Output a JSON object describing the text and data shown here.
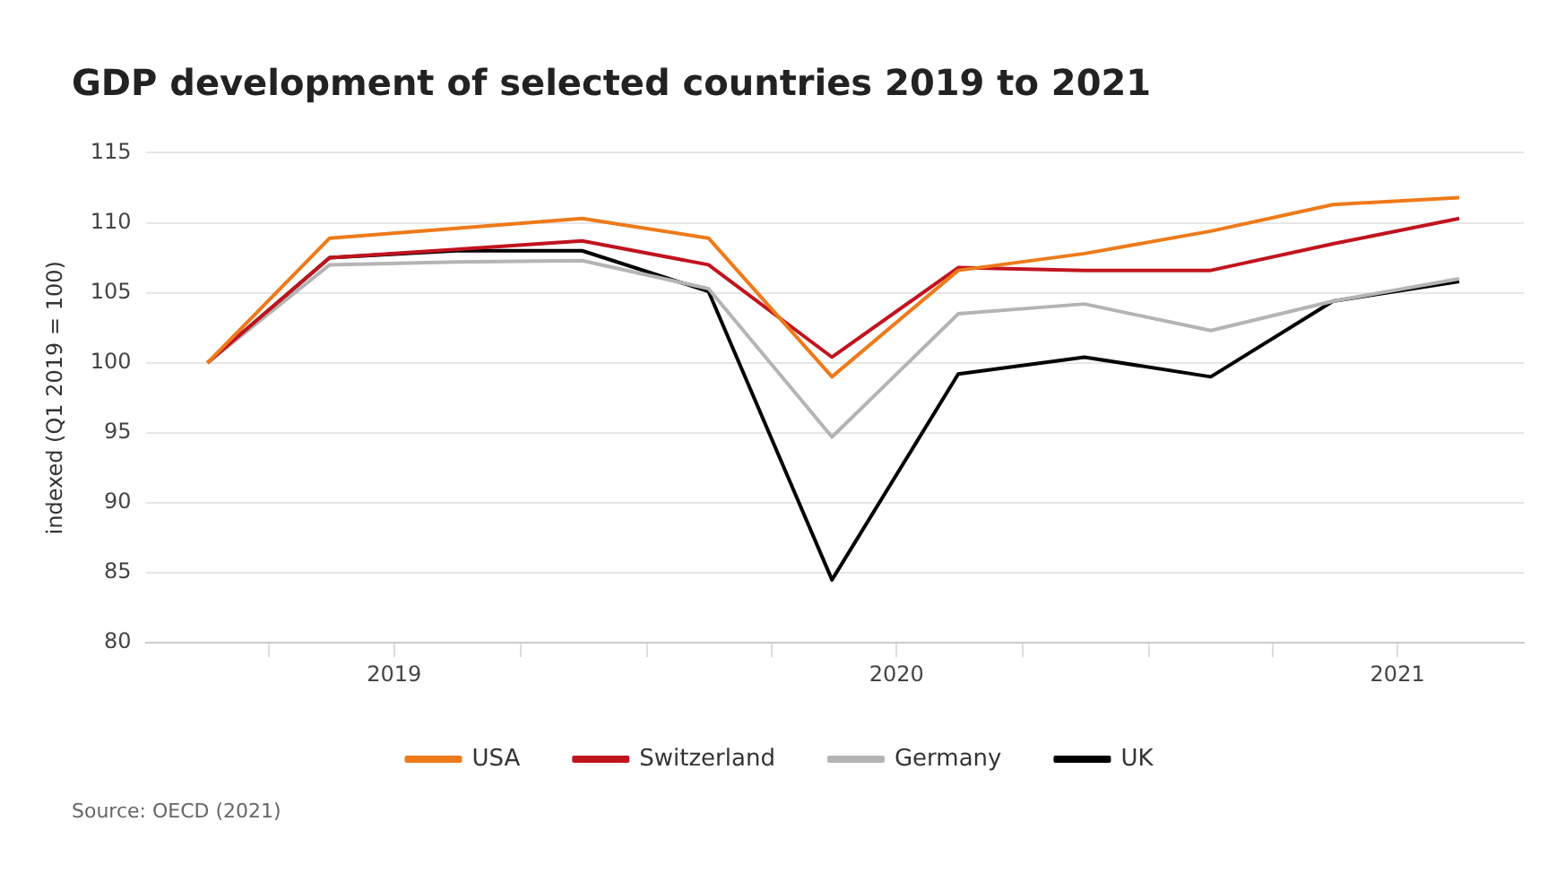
{
  "chart_data": {
    "type": "line",
    "title": "GDP development of selected countries 2019 to 2021",
    "ylabel": "indexed (Q1 2019 = 100)",
    "annotations": [
      "Source: OECD (2021)"
    ],
    "x": [
      "2019-02-15",
      "2019-05-15",
      "2019-08-15",
      "2019-11-15",
      "2020-02-15",
      "2020-05-15",
      "2020-08-15",
      "2020-11-15",
      "2021-02-15",
      "2021-05-15",
      "2021-08-15"
    ],
    "xlim": [
      "2019-01-01",
      "2021-10-01"
    ],
    "xticks": [
      {
        "value": "2019-04-01",
        "label": null
      },
      {
        "value": "2019-07-01",
        "label": "2019"
      },
      {
        "value": "2019-10-01",
        "label": null
      },
      {
        "value": "2020-01-01",
        "label": null
      },
      {
        "value": "2020-04-01",
        "label": null
      },
      {
        "value": "2020-07-01",
        "label": "2020"
      },
      {
        "value": "2020-10-01",
        "label": null
      },
      {
        "value": "2021-01-01",
        "label": null
      },
      {
        "value": "2021-04-01",
        "label": null
      },
      {
        "value": "2021-07-01",
        "label": "2021"
      }
    ],
    "ylim": [
      80,
      115
    ],
    "yticks": [
      80,
      85,
      90,
      95,
      100,
      105,
      110,
      115
    ],
    "series": [
      {
        "name": "USA",
        "color": "#ee7a1a",
        "values": [
          100,
          108.9,
          109.6,
          110.3,
          108.9,
          99.0,
          106.6,
          107.8,
          109.4,
          111.3,
          111.8
        ]
      },
      {
        "name": "Switzerland",
        "color": "#c0141e",
        "values": [
          100,
          107.5,
          108.1,
          108.7,
          107.0,
          100.4,
          106.8,
          106.6,
          106.6,
          108.5,
          110.3
        ]
      },
      {
        "name": "Germany",
        "color": "#b4b4b4",
        "values": [
          100,
          107.0,
          107.2,
          107.3,
          105.3,
          94.7,
          103.5,
          104.2,
          102.3,
          104.4,
          106.0
        ]
      },
      {
        "name": "UK",
        "color": "#000000",
        "values": [
          100,
          107.5,
          108.0,
          108.0,
          105.1,
          84.5,
          99.2,
          100.4,
          99.0,
          104.4,
          105.8
        ]
      }
    ],
    "grid": "y",
    "legend": "bottom",
    "marker": "none",
    "line_style": "solid"
  }
}
